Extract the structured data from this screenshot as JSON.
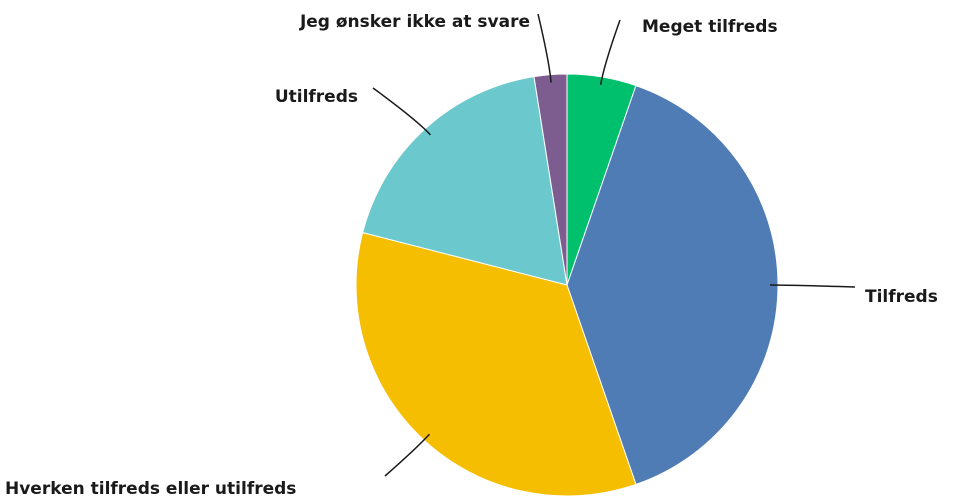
{
  "chart_data": {
    "type": "pie",
    "categories": [
      "Meget tilfreds",
      "Tilfreds",
      "Hverken tilfreds eller utilfreds",
      "Utilfreds",
      "Jeg ønsker ikke at svare"
    ],
    "values": [
      5.3,
      39.4,
      34.3,
      18.5,
      2.5
    ],
    "colors": [
      "#00c06e",
      "#507cb6",
      "#f6be00",
      "#6bc8cc",
      "#7d5d90"
    ]
  }
}
